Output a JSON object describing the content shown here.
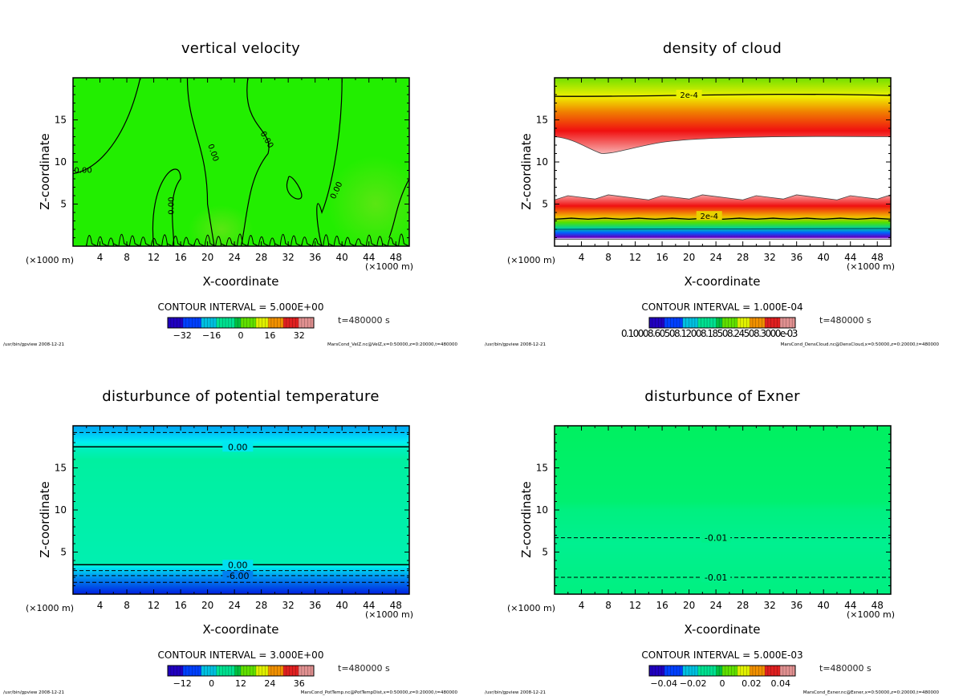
{
  "chart_data": [
    {
      "type": "heatmap",
      "id": "velz",
      "title": "vertical velocity",
      "xlabel": "X-coordinate",
      "ylabel": "Z-coordinate",
      "x_unit_left": "(×1000 m)",
      "x_unit_right": "(×1000 m)",
      "xlim": [
        0,
        50
      ],
      "ylim": [
        0,
        20
      ],
      "xticks": [
        4,
        8,
        12,
        16,
        20,
        24,
        28,
        32,
        36,
        40,
        44,
        48
      ],
      "xtick_labels": [
        "4",
        "8",
        "12",
        "16",
        "20",
        "24",
        "28",
        "32",
        "36",
        "40",
        "44",
        "48"
      ],
      "yticks": [
        5,
        10,
        15
      ],
      "ytick_labels": [
        "5",
        "10",
        "15"
      ],
      "contour_interval": "CONTOUR INTERVAL = 5.000E+00",
      "time": "t=480000 s",
      "colorbar_range": [
        -40,
        40
      ],
      "colorbar_labels": [
        "−32",
        "−16",
        "0",
        "16",
        "32"
      ],
      "colorbar_ticks": [
        -32,
        -16,
        0,
        16,
        32
      ],
      "contour_labels": [
        "0.00",
        "0.00",
        "0.00",
        "0.00",
        "0.00",
        "0.00",
        "0",
        "0"
      ],
      "field_color": "#22ee00",
      "footer_left": "/usr/bin/gpview  2008-12-21",
      "footer_right": "MarsCond_VelZ.nc@VelZ,x=0:50000,z=0:20000,t=480000"
    },
    {
      "type": "heatmap",
      "id": "denscloud",
      "title": "density of cloud",
      "xlabel": "X-coordinate",
      "ylabel": "Z-coordinate",
      "x_unit_left": "(×1000 m)",
      "x_unit_right": "(×1000 m)",
      "xlim": [
        0,
        50
      ],
      "ylim": [
        0,
        20
      ],
      "xticks": [
        4,
        8,
        12,
        16,
        20,
        24,
        28,
        32,
        36,
        40,
        44,
        48
      ],
      "xtick_labels": [
        "4",
        "8",
        "12",
        "16",
        "20",
        "24",
        "28",
        "32",
        "36",
        "40",
        "44",
        "48"
      ],
      "yticks": [
        5,
        10,
        15
      ],
      "ytick_labels": [
        "5",
        "10",
        "15"
      ],
      "contour_interval": "CONTOUR INTERVAL = 1.000E-04",
      "time": "t=480000 s",
      "colorbar_labels_text": "0.10008.60508.12008.18508.24508.3000e-03",
      "contour_labels": [
        "2e-4",
        "2e-4"
      ],
      "cloud_layers": [
        {
          "z_bottom_range": [
            11,
            13
          ],
          "z_top": 20,
          "peak_z": 14.5,
          "contour_2e-4_z": 17.8
        },
        {
          "z_bottom": 0.8,
          "z_top_range": [
            5.5,
            6.2
          ],
          "peak_z": 4.8,
          "contour_2e-4_z": 3.2
        }
      ],
      "footer_left": "/usr/bin/gpview  2008-12-21",
      "footer_right": "MarsCond_DensCloud.nc@DensCloud,x=0:50000,z=0:20000,t=480000"
    },
    {
      "type": "heatmap",
      "id": "pottemp",
      "title": "disturbunce of potential temperature",
      "xlabel": "X-coordinate",
      "ylabel": "Z-coordinate",
      "x_unit_left": "(×1000 m)",
      "x_unit_right": "(×1000 m)",
      "xlim": [
        0,
        50
      ],
      "ylim": [
        0,
        20
      ],
      "xticks": [
        4,
        8,
        12,
        16,
        20,
        24,
        28,
        32,
        36,
        40,
        44,
        48
      ],
      "xtick_labels": [
        "4",
        "8",
        "12",
        "16",
        "20",
        "24",
        "28",
        "32",
        "36",
        "40",
        "44",
        "48"
      ],
      "yticks": [
        5,
        10,
        15
      ],
      "ytick_labels": [
        "5",
        "10",
        "15"
      ],
      "contour_interval": "CONTOUR INTERVAL = 3.000E+00",
      "time": "t=480000 s",
      "colorbar_range": [
        -18,
        42
      ],
      "colorbar_labels": [
        "−12",
        "0",
        "12",
        "24",
        "36"
      ],
      "colorbar_ticks": [
        -12,
        0,
        12,
        24,
        36
      ],
      "contours": [
        {
          "z": 19.2,
          "style": "dashed",
          "label": ""
        },
        {
          "z": 17.5,
          "style": "solid",
          "label": "0.00"
        },
        {
          "z": 3.5,
          "style": "solid",
          "label": "0.00"
        },
        {
          "z": 2.8,
          "style": "dashed",
          "label": ""
        },
        {
          "z": 2.2,
          "style": "dashed",
          "label": "-6.00"
        },
        {
          "z": 1.4,
          "style": "dashed",
          "label": ""
        }
      ],
      "footer_left": "/usr/bin/gpview  2008-12-21",
      "footer_right": "MarsCond_PotTemp.nc@PotTempDist,x=0:50000,z=0:20000,t=480000"
    },
    {
      "type": "heatmap",
      "id": "exner",
      "title": "disturbunce of Exner",
      "xlabel": "X-coordinate",
      "ylabel": "Z-coordinate",
      "x_unit_left": "(×1000 m)",
      "x_unit_right": "(×1000 m)",
      "xlim": [
        0,
        50
      ],
      "ylim": [
        0,
        20
      ],
      "xticks": [
        4,
        8,
        12,
        16,
        20,
        24,
        28,
        32,
        36,
        40,
        44,
        48
      ],
      "xtick_labels": [
        "4",
        "8",
        "12",
        "16",
        "20",
        "24",
        "28",
        "32",
        "36",
        "40",
        "44",
        "48"
      ],
      "yticks": [
        5,
        10,
        15
      ],
      "ytick_labels": [
        "5",
        "10",
        "15"
      ],
      "contour_interval": "CONTOUR INTERVAL = 5.000E-03",
      "time": "t=480000 s",
      "colorbar_range": [
        -0.05,
        0.05
      ],
      "colorbar_labels": [
        "−0.04",
        "−0.02",
        "0",
        "0.02",
        "0.04"
      ],
      "colorbar_ticks": [
        -0.04,
        -0.02,
        0,
        0.02,
        0.04
      ],
      "contours": [
        {
          "z": 6.7,
          "style": "dashed",
          "label": "-0.01"
        },
        {
          "z": 2.0,
          "style": "dashed",
          "label": "-0.01"
        }
      ],
      "footer_left": "/usr/bin/gpview  2008-12-21",
      "footer_right": "MarsCond_Exner.nc@Exner,x=0:50000,z=0:20000,t=480000"
    }
  ]
}
